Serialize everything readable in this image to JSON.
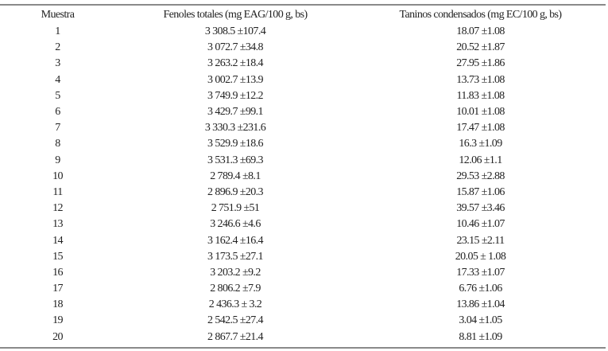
{
  "table": {
    "headers": [
      "Muestra",
      "Fenoles totales (mg EAG/100 g, bs)",
      "Taninos condensados (mg EC/100 g, bs)"
    ],
    "rows": [
      [
        "1",
        "3 308.5 ±107.4",
        "18.07 ±1.08"
      ],
      [
        "2",
        "3 072.7 ±34.8",
        "20.52 ±1.87"
      ],
      [
        "3",
        "3 263.2 ±18.4",
        "27.95 ±1.86"
      ],
      [
        "4",
        "3 002.7 ±13.9",
        "13.73 ±1.08"
      ],
      [
        "5",
        "3 749.9 ±12.2",
        "11.83 ±1.08"
      ],
      [
        "6",
        "3 429.7 ±99.1",
        "10.01 ±1.08"
      ],
      [
        "7",
        "3 330.3 ±231.6",
        "17.47 ±1.08"
      ],
      [
        "8",
        "3 529.9 ±18.6",
        "16.3 ±1.09"
      ],
      [
        "9",
        "3 531.3 ±69.3",
        "12.06 ±1.1"
      ],
      [
        "10",
        "2 789.4 ±8.1",
        "29.53 ±2.88"
      ],
      [
        "11",
        "2 896.9 ±20.3",
        "15.87 ±1.06"
      ],
      [
        "12",
        "2 751.9 ±51",
        "39.57 ±3.46"
      ],
      [
        "13",
        "3 246.6 ±4.6",
        "10.46 ±1.07"
      ],
      [
        "14",
        "3 162.4 ±16.4",
        "23.15 ±2.11"
      ],
      [
        "15",
        "3 173.5 ±27.1",
        "20.05 ± 1.08"
      ],
      [
        "16",
        "3 203.2 ±9.2",
        "17.33 ±1.07"
      ],
      [
        "17",
        "2 806.2 ±7.9",
        "6.76 ±1.06"
      ],
      [
        "18",
        "2 436.3 ± 3.2",
        "13.86 ±1.04"
      ],
      [
        "19",
        "2 542.5 ±27.4",
        "3.04 ±1.05"
      ],
      [
        "20",
        "2 867.7 ±21.4",
        "8.81 ±1.09"
      ]
    ]
  }
}
